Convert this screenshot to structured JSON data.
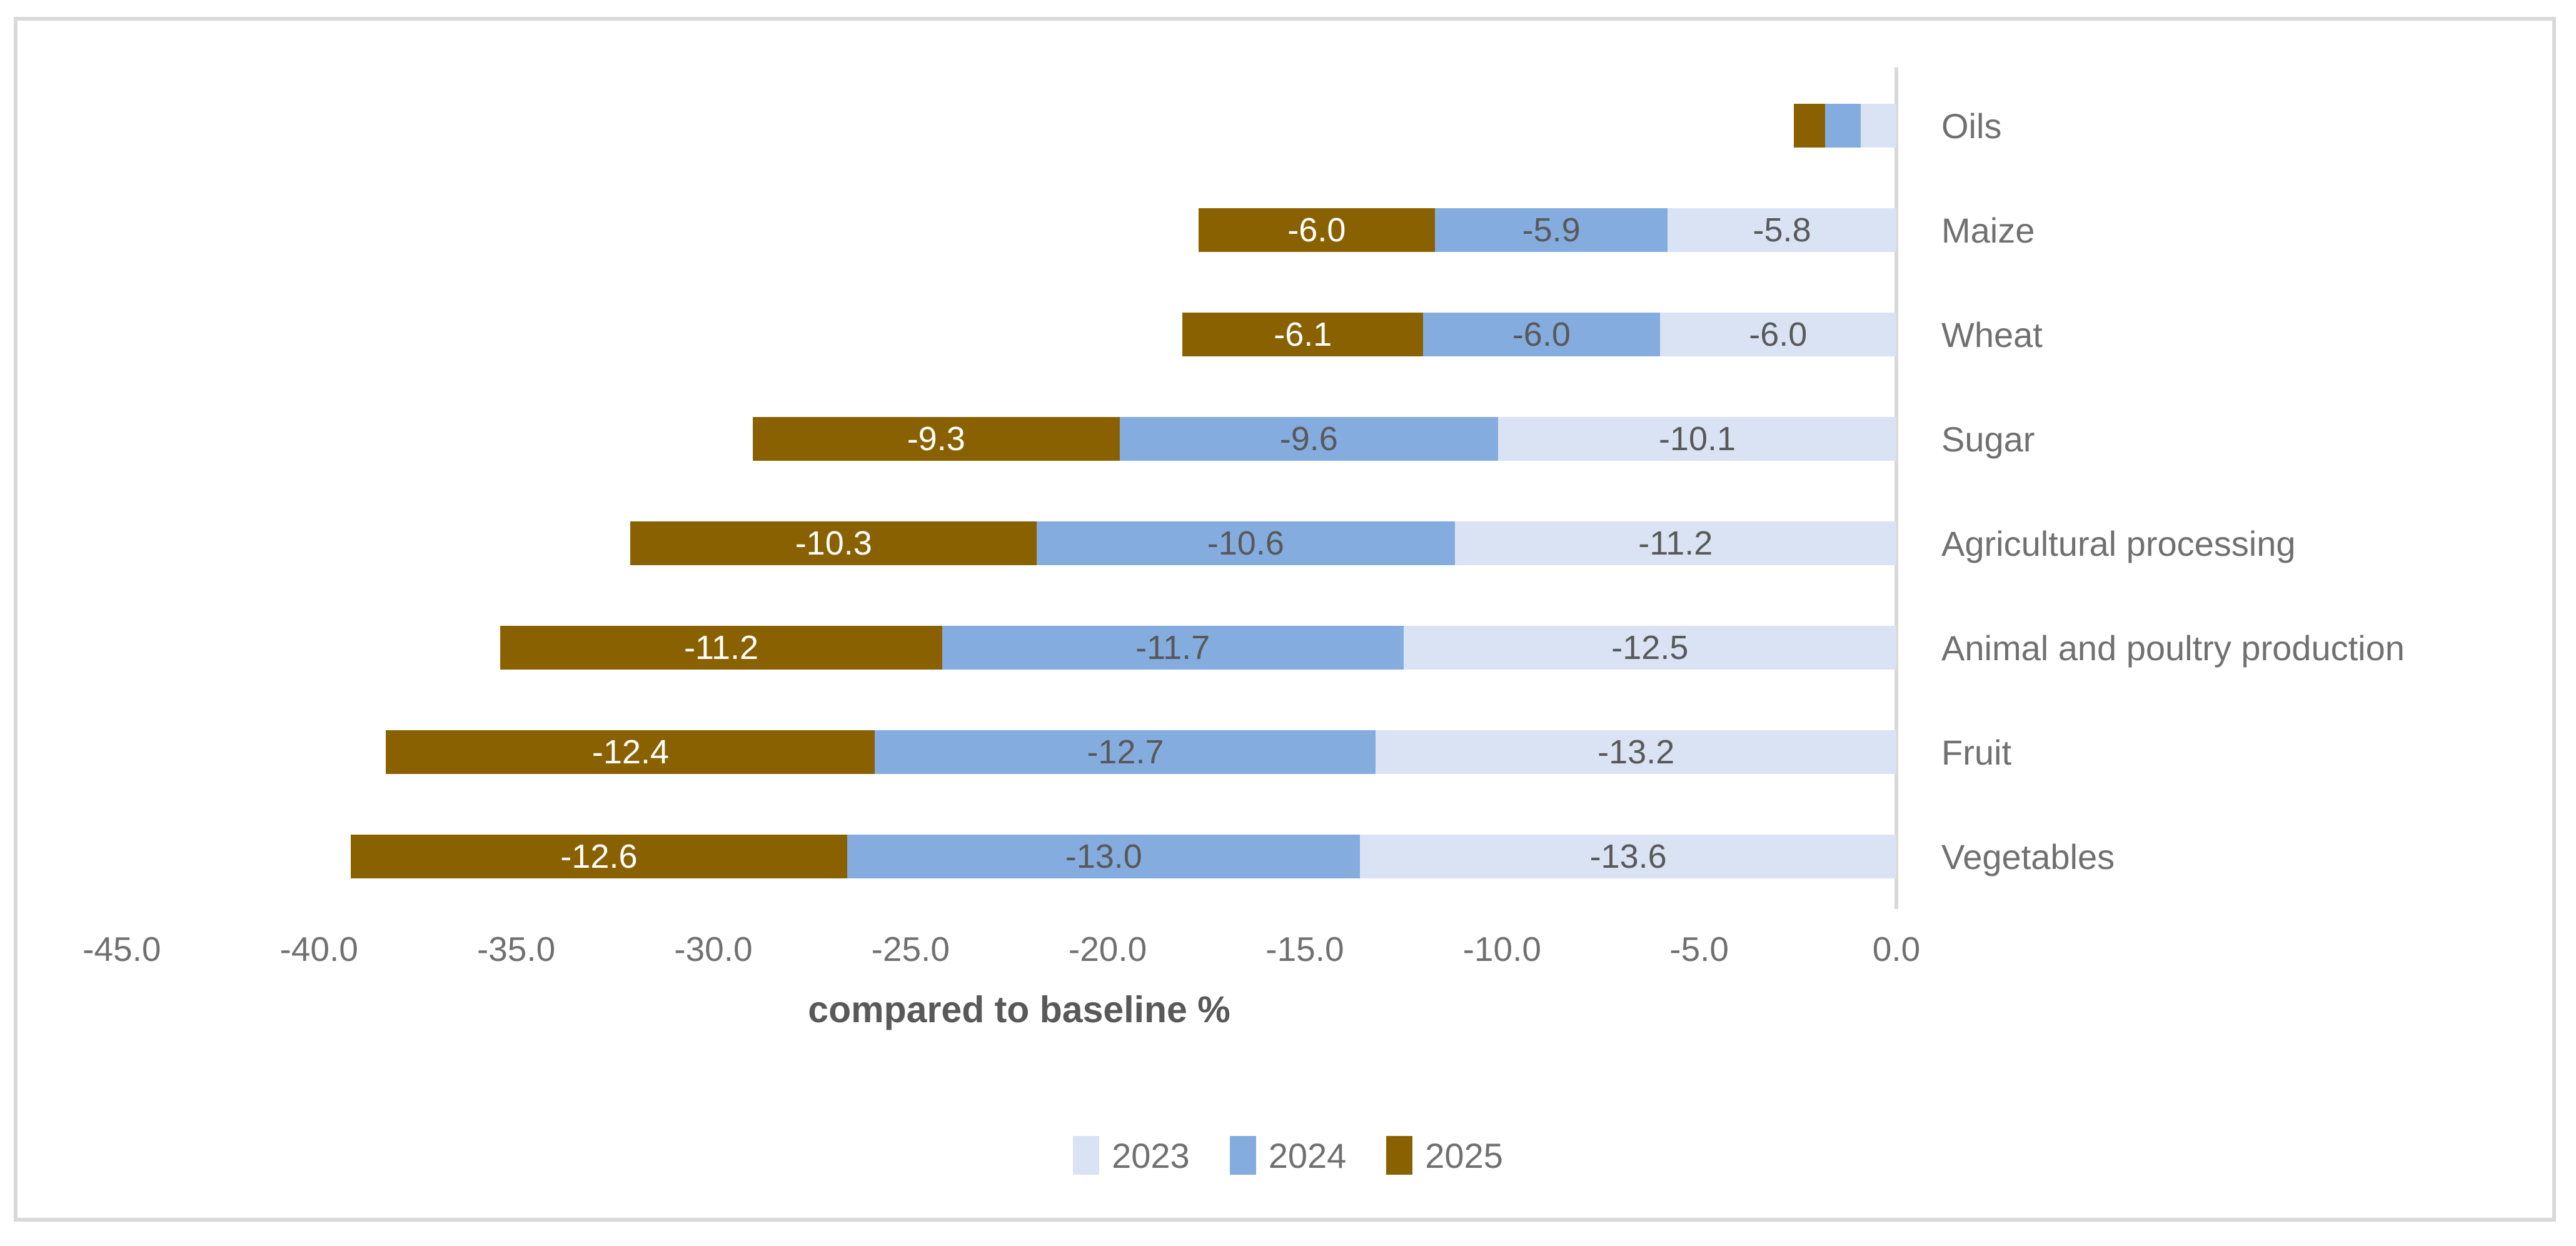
{
  "chart_data": {
    "type": "bar",
    "orientation": "horizontal",
    "stacked": true,
    "categories": [
      "Oils",
      "Maize",
      "Wheat",
      "Sugar",
      "Agricultural processing",
      "Animal and poultry production",
      "Fruit",
      "Vegetables"
    ],
    "series": [
      {
        "name": "2023",
        "color": "#DAE3F3",
        "label_color": "#595959",
        "values": [
          -0.9,
          -5.8,
          -6.0,
          -10.1,
          -11.2,
          -12.5,
          -13.2,
          -13.6
        ],
        "labels": [
          "",
          "-5.8",
          "-6.0",
          "-10.1",
          "-11.2",
          "-12.5",
          "-13.2",
          "-13.6"
        ]
      },
      {
        "name": "2024",
        "color": "#84ACDE",
        "label_color": "#595959",
        "values": [
          -0.9,
          -5.9,
          -6.0,
          -9.6,
          -10.6,
          -11.7,
          -12.7,
          -13.0
        ],
        "labels": [
          "",
          "-5.9",
          "-6.0",
          "-9.6",
          "-10.6",
          "-11.7",
          "-12.7",
          "-13.0"
        ]
      },
      {
        "name": "2025",
        "color": "#8A6100",
        "label_color": "#FFFFFF",
        "values": [
          -0.8,
          -6.0,
          -6.1,
          -9.3,
          -10.3,
          -11.2,
          -12.4,
          -12.6
        ],
        "labels": [
          "",
          "-6.0",
          "-6.1",
          "-9.3",
          "-10.3",
          "-11.2",
          "-12.4",
          "-12.6"
        ]
      }
    ],
    "stack_order_from_axis": [
      "2023",
      "2024",
      "2025"
    ],
    "xlabel": "compared to baseline %",
    "xlim": [
      -45,
      0
    ],
    "x_tick_values": [
      -45,
      -40,
      -35,
      -30,
      -25,
      -20,
      -15,
      -10,
      -5,
      0
    ],
    "x_tick_labels": [
      "-45.0",
      "-40.0",
      "-35.0",
      "-30.0",
      "-25.0",
      "-20.0",
      "-15.0",
      "-10.0",
      "-5.0",
      "0.0"
    ],
    "grid": "off",
    "legend": {
      "position": "bottom",
      "entries": [
        "2023",
        "2024",
        "2025"
      ]
    },
    "axis_color": "#D9D9D9",
    "border_color": "#D9D9D9",
    "text_color": "#707070",
    "data_label_color_on_light": "#595959",
    "data_label_color_on_dark": "#FFFFFF",
    "plot_bgcolor": "#FFFFFF"
  }
}
